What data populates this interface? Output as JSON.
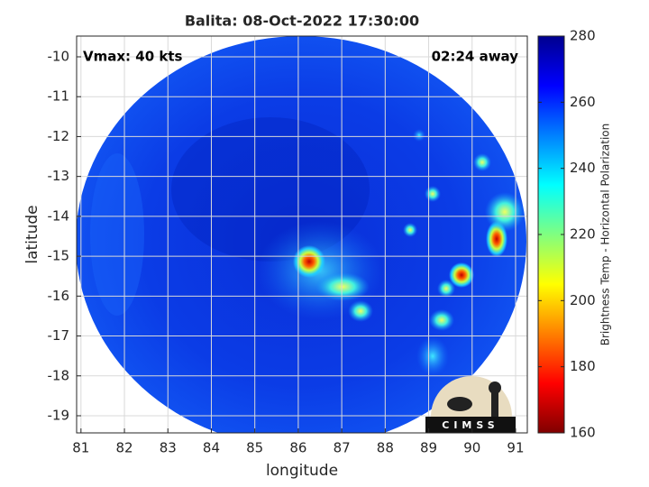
{
  "chart_data": {
    "type": "image",
    "title": "Balita: 08-Oct-2022 17:30:00",
    "annotations": {
      "left": "Vmax: 40 kts",
      "right": "02:24 away"
    },
    "xlabel": "longitude",
    "ylabel": "latitude",
    "xlim": [
      80.9,
      91.27
    ],
    "ylim": [
      -19.43,
      -9.48
    ],
    "xticks": [
      81,
      82,
      83,
      84,
      85,
      86,
      87,
      88,
      89,
      90,
      91
    ],
    "yticks": [
      -10,
      -11,
      -12,
      -13,
      -14,
      -15,
      -16,
      -17,
      -18,
      -19
    ],
    "grid": true,
    "colorbar": {
      "label": "Brightness Temp - Horizontal Polarization",
      "lim": [
        160,
        280
      ],
      "ticks": [
        160,
        180,
        200,
        220,
        240,
        260,
        280
      ],
      "colormap": [
        "#800000",
        "#ff0000",
        "#ff8000",
        "#ffff00",
        "#80ff80",
        "#00ffff",
        "#0080ff",
        "#0000ff",
        "#00008f"
      ]
    },
    "logo": "CIMSS"
  }
}
